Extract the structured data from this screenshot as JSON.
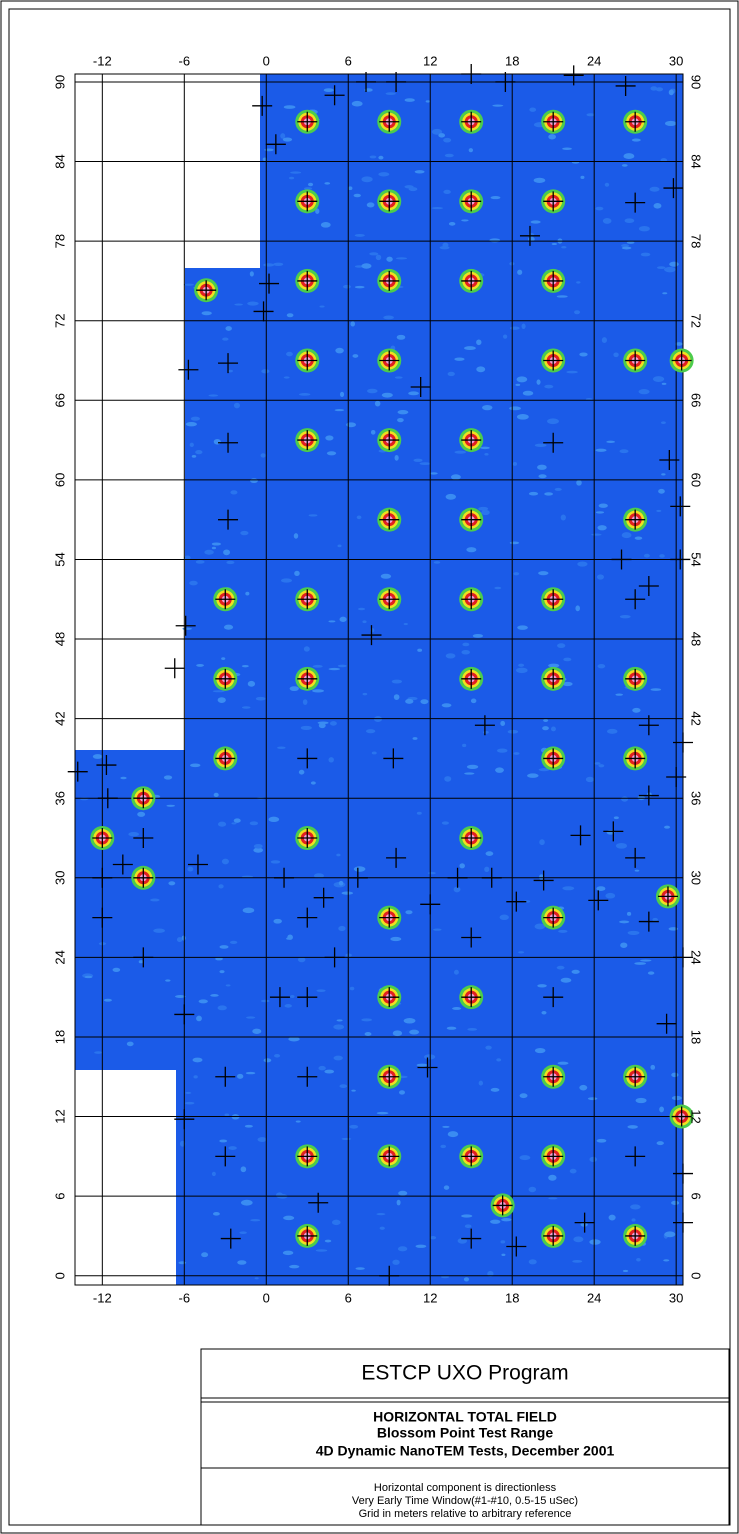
{
  "chart_data": {
    "type": "map",
    "xlim": [
      -14,
      30.5
    ],
    "ylim": [
      -0.7,
      90.6
    ],
    "xticks": [
      -12,
      -6,
      0,
      6,
      12,
      18,
      24,
      30
    ],
    "yticks": [
      0,
      6,
      12,
      18,
      24,
      30,
      36,
      42,
      48,
      54,
      60,
      66,
      72,
      78,
      84,
      90
    ],
    "grid": true,
    "anomalies": {
      "x": [
        3,
        9,
        15,
        21,
        27,
        3,
        9,
        15,
        21,
        -4.4,
        3,
        9,
        15,
        21,
        3,
        9,
        21,
        27,
        30.4,
        3,
        9,
        15,
        9,
        15,
        27,
        -3,
        3,
        9,
        15,
        21,
        -3,
        3,
        15,
        21,
        27,
        -3,
        21,
        27,
        -9,
        -12,
        3,
        15,
        -9,
        29.4,
        9,
        21,
        9,
        15,
        9,
        21,
        27,
        30.4,
        3,
        9,
        15,
        21,
        3,
        21,
        27,
        17.3
      ],
      "y": [
        87,
        87,
        87,
        87,
        87,
        81,
        81,
        81,
        81,
        74.3,
        75,
        75,
        75,
        75,
        69,
        69,
        69,
        69,
        69,
        63,
        63,
        63,
        57,
        57,
        57,
        51,
        51,
        51,
        51,
        51,
        45,
        45,
        45,
        45,
        45,
        39,
        39,
        39,
        36,
        33,
        33,
        33,
        30,
        28.6,
        27,
        27,
        21,
        21,
        15,
        15,
        15,
        12,
        9,
        9,
        9,
        9,
        3,
        3,
        3,
        5.3
      ]
    },
    "crosses": {
      "x": [
        -0.3,
        0.7,
        5,
        7.3,
        9.5,
        15,
        17.5,
        22.5,
        26.3,
        29.8,
        19.3,
        27,
        0.2,
        -0.2,
        -5.7,
        -2.8,
        11.3,
        -2.8,
        21,
        29.5,
        -2.8,
        30.3,
        30.3,
        26,
        28,
        27,
        -5.9,
        7.7,
        -6.7,
        16,
        28,
        3,
        9.3,
        30.5,
        30,
        28,
        -13.8,
        -11.7,
        -11.6,
        -9,
        -12,
        -10.5,
        -5,
        1.3,
        4.2,
        6.7,
        9.5,
        12,
        14,
        16.5,
        18.3,
        20.3,
        23,
        25.4,
        27,
        24.3,
        28,
        3,
        -12,
        15,
        5,
        30.5,
        -9,
        1,
        3,
        21,
        -6,
        29.3,
        -3,
        3,
        11.8,
        -6,
        -3,
        27,
        30.5,
        3.8,
        23.3,
        30.5,
        -2.6,
        15,
        18.3,
        9
      ],
      "y": [
        88.2,
        85.3,
        89,
        90,
        90,
        90.6,
        90,
        90.5,
        89.7,
        82,
        78.4,
        80.9,
        74.8,
        72.7,
        68.3,
        68.8,
        67,
        62.8,
        62.8,
        61.5,
        57,
        58,
        54,
        54,
        52,
        51,
        49,
        48.3,
        45.8,
        41.5,
        41.5,
        39,
        39,
        40.2,
        37.6,
        36.2,
        38,
        38.5,
        36,
        33,
        30,
        31,
        31,
        30,
        28.5,
        30,
        31.5,
        28,
        30,
        30,
        28.2,
        29.8,
        33.2,
        33.5,
        31.5,
        28.3,
        26.7,
        27,
        27,
        25.5,
        24,
        24,
        24,
        21,
        21,
        21,
        19.7,
        19,
        15,
        15,
        15.7,
        11.8,
        9,
        9,
        7.7,
        5.5,
        4,
        4,
        2.8,
        2.8,
        2.2,
        0
      ]
    }
  },
  "title_block": {
    "program": "ESTCP UXO Program",
    "title": "HORIZONTAL TOTAL FIELD",
    "site": "Blossom Point Test Range",
    "tests": "4D Dynamic NanoTEM Tests, December 2001",
    "notes": [
      "Horizontal component is directionless",
      "Very Early Time Window(#1-#10, 0.5-15 uSec)",
      "Grid in meters relative to arbitrary reference"
    ]
  }
}
